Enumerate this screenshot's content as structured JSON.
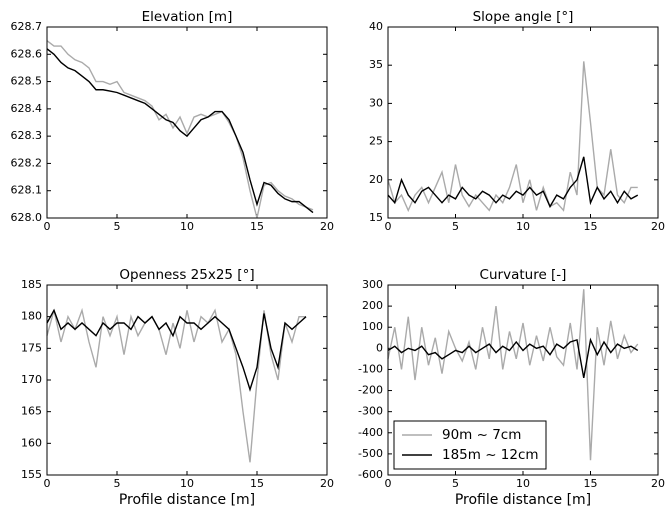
{
  "chart_data": [
    {
      "type": "line",
      "title": "Elevation [m]",
      "x": [
        0,
        0.5,
        1,
        1.5,
        2,
        2.5,
        3,
        3.5,
        4,
        4.5,
        5,
        5.5,
        6,
        6.5,
        7,
        7.5,
        8,
        8.5,
        9,
        9.5,
        10,
        10.5,
        11,
        11.5,
        12,
        12.5,
        13,
        13.5,
        14,
        14.5,
        15,
        15.5,
        16,
        16.5,
        17,
        17.5,
        18,
        18.5,
        19
      ],
      "series": [
        {
          "color": "#aaaaaa",
          "values": [
            628.65,
            628.63,
            628.63,
            628.6,
            628.58,
            628.57,
            628.55,
            628.5,
            628.5,
            628.49,
            628.5,
            628.46,
            628.45,
            628.44,
            628.43,
            628.41,
            628.36,
            628.38,
            628.33,
            628.37,
            628.31,
            628.37,
            628.38,
            628.37,
            628.38,
            628.39,
            628.35,
            628.3,
            628.22,
            628.1,
            628.0,
            628.12,
            628.13,
            628.1,
            628.08,
            628.07,
            628.05,
            628.04,
            628.03
          ]
        },
        {
          "color": "#000000",
          "values": [
            628.62,
            628.6,
            628.57,
            628.55,
            628.54,
            628.52,
            628.5,
            628.47,
            628.47,
            628.465,
            628.46,
            628.45,
            628.44,
            628.43,
            628.42,
            628.4,
            628.38,
            628.36,
            628.35,
            628.32,
            628.3,
            628.33,
            628.36,
            628.37,
            628.39,
            628.39,
            628.36,
            628.3,
            628.24,
            628.14,
            628.05,
            628.13,
            628.12,
            628.09,
            628.07,
            628.06,
            628.06,
            628.04,
            628.02
          ]
        }
      ],
      "xlim": [
        0,
        20
      ],
      "xticks": [
        0,
        5,
        10,
        15,
        20
      ],
      "ylim": [
        628,
        628.7
      ],
      "yticks": [
        {
          "value": 628,
          "label": "628.0"
        },
        628.1,
        628.2,
        628.3,
        628.4,
        628.5,
        628.6,
        628.7
      ]
    },
    {
      "type": "line",
      "title": "Slope angle [°]",
      "x": [
        0,
        0.5,
        1,
        1.5,
        2,
        2.5,
        3,
        3.5,
        4,
        4.5,
        5,
        5.5,
        6,
        6.5,
        7,
        7.5,
        8,
        8.5,
        9,
        9.5,
        10,
        10.5,
        11,
        11.5,
        12,
        12.5,
        13,
        13.5,
        14,
        14.5,
        15,
        15.5,
        16,
        16.5,
        17,
        17.5,
        18,
        18.5
      ],
      "series": [
        {
          "color": "#aaaaaa",
          "values": [
            20,
            17,
            18,
            16,
            18,
            19,
            17,
            19,
            21,
            17,
            22,
            18,
            16.5,
            18,
            17,
            16,
            18,
            17,
            19,
            22,
            17,
            20,
            16,
            19,
            16.5,
            17,
            16,
            21,
            18,
            35.5,
            27.5,
            19,
            18,
            24,
            18,
            17,
            19,
            19
          ]
        },
        {
          "color": "#000000",
          "values": [
            18,
            17,
            20,
            18,
            17,
            18.5,
            19,
            18,
            17,
            18,
            17.5,
            19,
            18,
            17.5,
            18.5,
            18,
            17,
            18,
            17.5,
            18.5,
            18,
            19,
            18,
            18.5,
            16.5,
            18,
            17.5,
            19,
            20,
            23,
            17,
            19,
            17.5,
            18.5,
            17,
            18.5,
            17.5,
            18
          ]
        }
      ],
      "xlim": [
        0,
        20
      ],
      "xticks": [
        0,
        5,
        10,
        15,
        20
      ],
      "ylim": [
        15,
        40
      ],
      "yticks": [
        15,
        20,
        25,
        30,
        35,
        40
      ]
    },
    {
      "type": "line",
      "title": "Openness 25x25 [°]",
      "x_label": "Profile distance [m]",
      "x": [
        0,
        0.5,
        1,
        1.5,
        2,
        2.5,
        3,
        3.5,
        4,
        4.5,
        5,
        5.5,
        6,
        6.5,
        7,
        7.5,
        8,
        8.5,
        9,
        9.5,
        10,
        10.5,
        11,
        11.5,
        12,
        12.5,
        13,
        13.5,
        14,
        14.5,
        15,
        15.5,
        16,
        16.5,
        17,
        17.5,
        18,
        18.5
      ],
      "series": [
        {
          "color": "#aaaaaa",
          "values": [
            177,
            181,
            176,
            180,
            178,
            181,
            176,
            172,
            180,
            177,
            180,
            174,
            180,
            177,
            179,
            180,
            178,
            174,
            179,
            175,
            181,
            176,
            180,
            179,
            181,
            176,
            178,
            174,
            165,
            157,
            170,
            181,
            174,
            170,
            179,
            176,
            180,
            180
          ]
        },
        {
          "color": "#000000",
          "values": [
            179,
            181,
            178,
            179,
            178,
            179,
            178,
            177,
            179,
            178,
            179,
            179,
            178,
            180,
            179,
            180,
            178,
            179,
            177,
            180,
            179,
            179,
            178,
            179,
            180,
            179,
            178,
            175,
            172,
            168.5,
            172,
            180.5,
            175,
            172,
            179,
            178,
            179,
            180
          ]
        }
      ],
      "xlim": [
        0,
        20
      ],
      "xticks": [
        0,
        5,
        10,
        15,
        20
      ],
      "ylim": [
        155,
        185
      ],
      "yticks": [
        155,
        160,
        165,
        170,
        175,
        180,
        185
      ]
    },
    {
      "type": "line",
      "title": "Curvature [-]",
      "x_label": "Profile distance [m]",
      "legend": "lower left",
      "x": [
        0,
        0.5,
        1,
        1.5,
        2,
        2.5,
        3,
        3.5,
        4,
        4.5,
        5,
        5.5,
        6,
        6.5,
        7,
        7.5,
        8,
        8.5,
        9,
        9.5,
        10,
        10.5,
        11,
        11.5,
        12,
        12.5,
        13,
        13.5,
        14,
        14.5,
        15,
        15.5,
        16,
        16.5,
        17,
        17.5,
        18,
        18.5
      ],
      "series": [
        {
          "name": "90m ~ 7cm",
          "color": "#aaaaaa",
          "values": [
            -50,
            100,
            -100,
            150,
            -150,
            100,
            -80,
            50,
            -120,
            80,
            0,
            -60,
            30,
            -100,
            100,
            -50,
            200,
            -100,
            80,
            -50,
            120,
            -80,
            60,
            -60,
            100,
            -40,
            -80,
            120,
            -100,
            280,
            -530,
            100,
            -80,
            130,
            -50,
            60,
            -20,
            20
          ]
        },
        {
          "name": "185m ~ 12cm",
          "color": "#000000",
          "values": [
            -10,
            10,
            -20,
            0,
            -10,
            10,
            -30,
            -20,
            -50,
            -30,
            -10,
            -20,
            10,
            -20,
            0,
            20,
            -20,
            10,
            -10,
            30,
            -10,
            20,
            0,
            10,
            -30,
            20,
            0,
            30,
            40,
            -140,
            40,
            -30,
            30,
            -20,
            20,
            0,
            10,
            -10
          ]
        }
      ],
      "xlim": [
        0,
        20
      ],
      "xticks": [
        0,
        5,
        10,
        15,
        20
      ],
      "ylim": [
        -600,
        300
      ],
      "yticks": [
        -600,
        -500,
        -400,
        -300,
        -200,
        -100,
        0,
        100,
        200,
        300
      ]
    }
  ]
}
